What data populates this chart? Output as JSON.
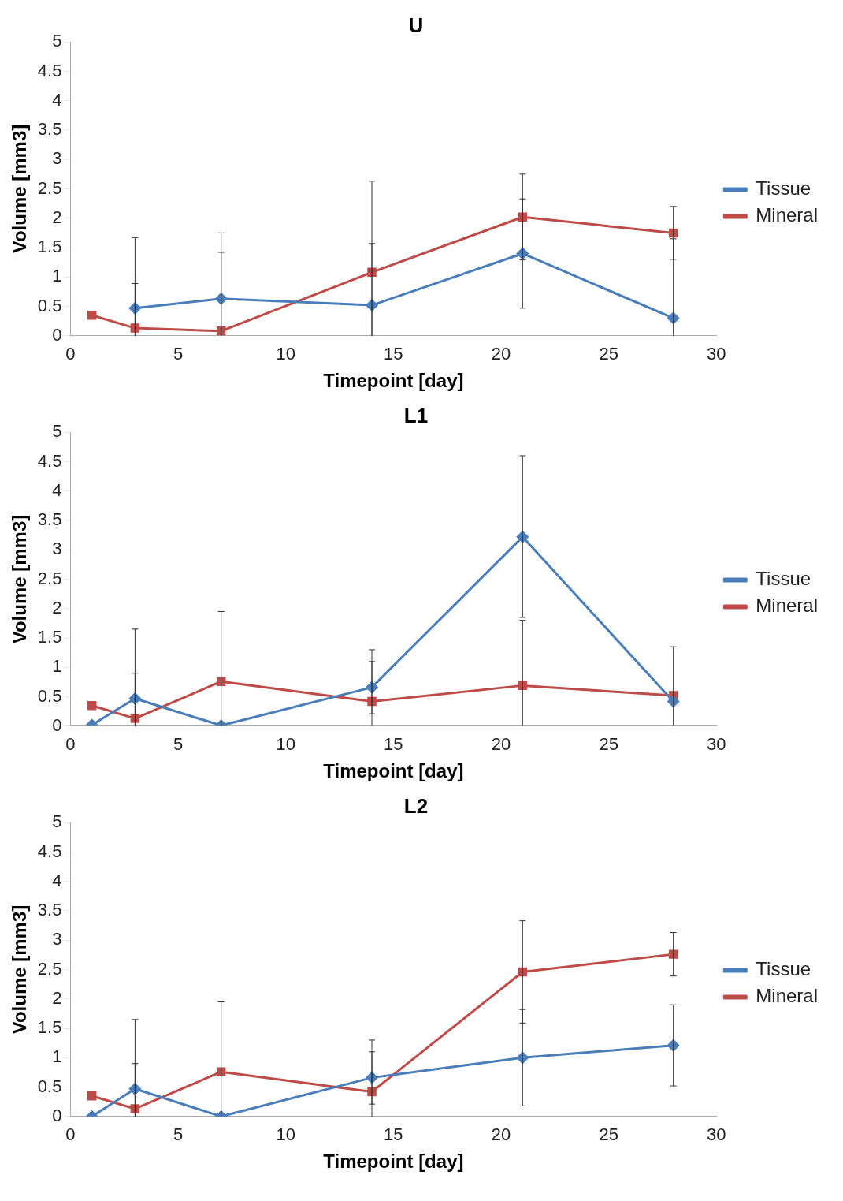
{
  "chart_data": [
    {
      "type": "line",
      "title": "U",
      "xlabel": "Timepoint [day]",
      "ylabel": "Volume [mm3]",
      "xlim": [
        0,
        30
      ],
      "xticks": [
        0,
        5,
        10,
        15,
        20,
        25,
        30
      ],
      "ylim": [
        0,
        5
      ],
      "yticks": [
        0,
        0.5,
        1,
        1.5,
        2,
        2.5,
        3,
        3.5,
        4,
        4.5,
        5
      ],
      "grid": false,
      "legend": "right",
      "line_style": "solid",
      "series": [
        {
          "name": "Tissue",
          "color": "#4a7ebb",
          "marker": "diamond",
          "x": [
            3,
            7,
            14,
            21,
            28
          ],
          "values": [
            0.47,
            0.63,
            0.52,
            1.4,
            0.3
          ],
          "errors": [
            [
              0,
              1.67
            ],
            [
              0,
              1.75
            ],
            [
              0,
              1.57
            ],
            [
              0.47,
              2.33
            ],
            [
              0,
              1.65
            ]
          ]
        },
        {
          "name": "Mineral",
          "color": "#be4b48",
          "marker": "square",
          "x": [
            1,
            3,
            7,
            14,
            21,
            28
          ],
          "values": [
            0.35,
            0.13,
            0.08,
            1.08,
            2.02,
            1.75
          ],
          "errors": [
            null,
            [
              0,
              0.89
            ],
            [
              0,
              1.42
            ],
            [
              0,
              2.63
            ],
            [
              1.29,
              2.75
            ],
            [
              1.3,
              2.2
            ]
          ]
        }
      ]
    },
    {
      "type": "line",
      "title": "L1",
      "xlabel": "Timepoint [day]",
      "ylabel": "Volume [mm3]",
      "xlim": [
        0,
        30
      ],
      "xticks": [
        0,
        5,
        10,
        15,
        20,
        25,
        30
      ],
      "ylim": [
        0,
        5
      ],
      "yticks": [
        0,
        0.5,
        1,
        1.5,
        2,
        2.5,
        3,
        3.5,
        4,
        4.5,
        5
      ],
      "grid": false,
      "legend": "right",
      "line_style": "solid",
      "series": [
        {
          "name": "Tissue",
          "color": "#4a7ebb",
          "marker": "diamond",
          "x": [
            1,
            3,
            7,
            14,
            21,
            28
          ],
          "values": [
            0.02,
            0.47,
            0.01,
            0.66,
            3.22,
            0.42
          ],
          "errors": [
            null,
            [
              0,
              1.65
            ],
            null,
            [
              0.21,
              1.1
            ],
            [
              1.85,
              4.6
            ],
            null
          ]
        },
        {
          "name": "Mineral",
          "color": "#be4b48",
          "marker": "square",
          "x": [
            1,
            3,
            7,
            14,
            21,
            28
          ],
          "values": [
            0.35,
            0.13,
            0.76,
            0.42,
            0.69,
            0.52
          ],
          "errors": [
            null,
            [
              0,
              0.9
            ],
            [
              0,
              1.95
            ],
            [
              0,
              1.3
            ],
            [
              0,
              1.8
            ],
            [
              0,
              1.35
            ]
          ]
        }
      ]
    },
    {
      "type": "line",
      "title": "L2",
      "xlabel": "Timepoint [day]",
      "ylabel": "Volume [mm3]",
      "xlim": [
        0,
        30
      ],
      "xticks": [
        0,
        5,
        10,
        15,
        20,
        25,
        30
      ],
      "ylim": [
        0,
        5
      ],
      "yticks": [
        0,
        0.5,
        1,
        1.5,
        2,
        2.5,
        3,
        3.5,
        4,
        4.5,
        5
      ],
      "grid": false,
      "legend": "right",
      "line_style": "solid",
      "series": [
        {
          "name": "Tissue",
          "color": "#4a7ebb",
          "marker": "diamond",
          "x": [
            1,
            3,
            7,
            14,
            21,
            28
          ],
          "values": [
            0,
            0.47,
            0,
            0.66,
            1.0,
            1.21
          ],
          "errors": [
            null,
            [
              0,
              1.65
            ],
            null,
            [
              0.21,
              1.1
            ],
            [
              0.18,
              1.82
            ],
            [
              0.52,
              1.9
            ]
          ]
        },
        {
          "name": "Mineral",
          "color": "#be4b48",
          "marker": "square",
          "x": [
            1,
            3,
            7,
            14,
            21,
            28
          ],
          "values": [
            0.35,
            0.13,
            0.76,
            0.42,
            2.46,
            2.76
          ],
          "errors": [
            null,
            [
              0,
              0.9
            ],
            [
              0,
              1.95
            ],
            [
              0,
              1.3
            ],
            [
              1.59,
              3.33
            ],
            [
              2.39,
              3.13
            ]
          ]
        }
      ]
    }
  ]
}
